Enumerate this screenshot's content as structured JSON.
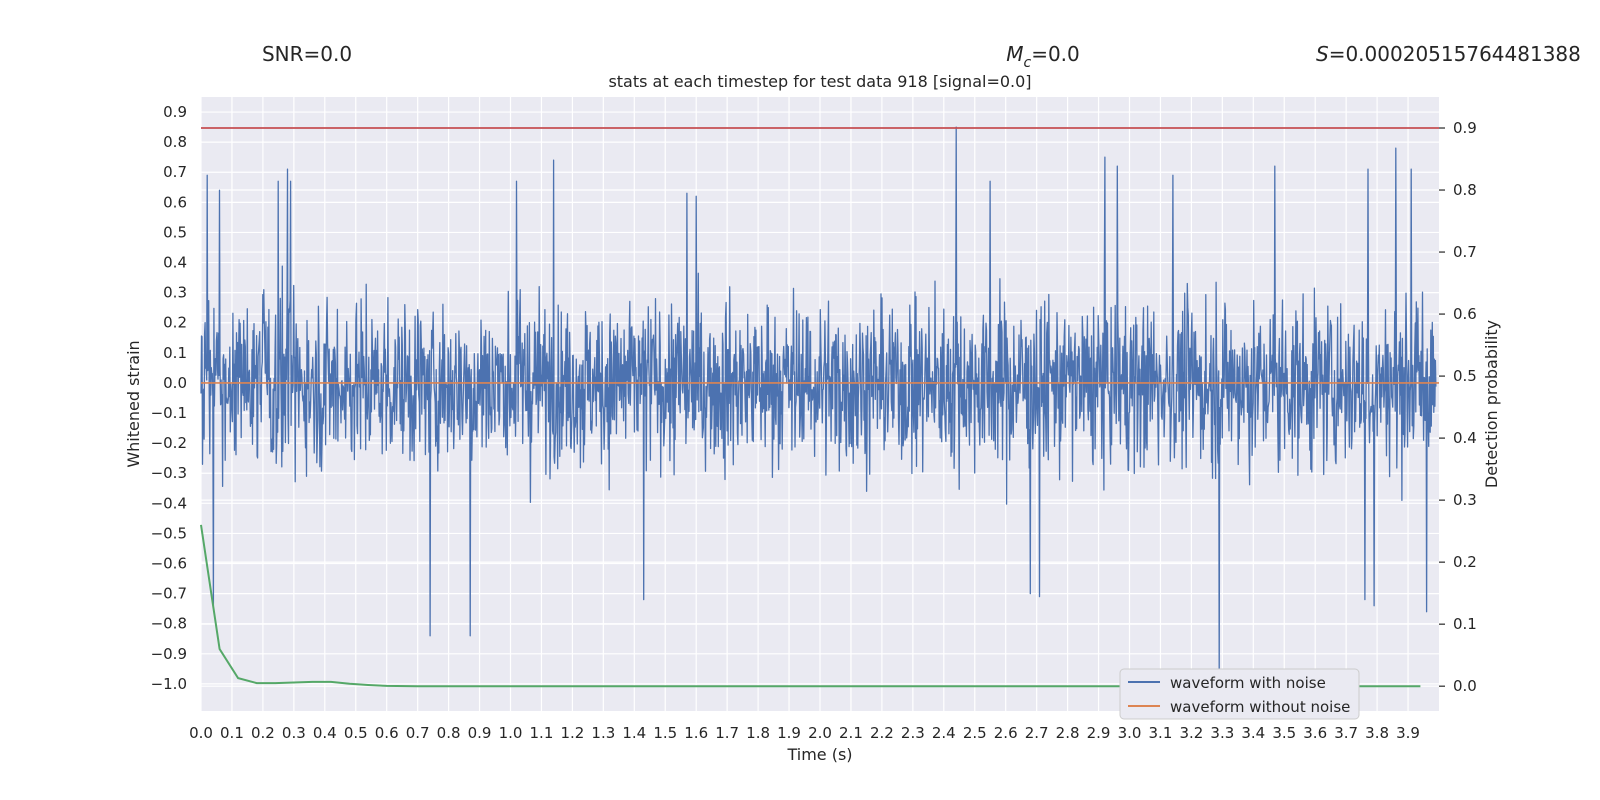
{
  "header": {
    "snr_label": "SNR=0.0",
    "mc_symbol": "M",
    "mc_sub": "c",
    "mc_value": "=0.0",
    "s_symbol": "S",
    "s_value": "=0.00020515764481388"
  },
  "chart_data": {
    "type": "line",
    "title": "stats at each timestep for test data 918 [signal=0.0]",
    "xlabel": "Time (s)",
    "ylabel_left": "Whitened strain",
    "ylabel_right": "Detection probability",
    "xlim": [
      0.0,
      4.0
    ],
    "ylim_left": [
      -1.09,
      0.95
    ],
    "ylim_right": [
      -0.04,
      0.95
    ],
    "x_ticks": [
      "0.0",
      "0.1",
      "0.2",
      "0.3",
      "0.4",
      "0.5",
      "0.6",
      "0.7",
      "0.8",
      "0.9",
      "1.0",
      "1.1",
      "1.2",
      "1.3",
      "1.4",
      "1.5",
      "1.6",
      "1.7",
      "1.8",
      "1.9",
      "2.0",
      "2.1",
      "2.2",
      "2.3",
      "2.4",
      "2.5",
      "2.6",
      "2.7",
      "2.8",
      "2.9",
      "3.0",
      "3.1",
      "3.2",
      "3.3",
      "3.4",
      "3.5",
      "3.6",
      "3.7",
      "3.8",
      "3.9"
    ],
    "y_left_ticks": [
      "0.9",
      "0.8",
      "0.7",
      "0.6",
      "0.5",
      "0.4",
      "0.3",
      "0.2",
      "0.1",
      "0.0",
      "-0.1",
      "-0.2",
      "-0.3",
      "-0.4",
      "-0.5",
      "-0.6",
      "-0.7",
      "-0.8",
      "-0.9",
      "-1.0"
    ],
    "y_right_ticks": [
      "0.9",
      "0.8",
      "0.7",
      "0.6",
      "0.5",
      "0.4",
      "0.3",
      "0.2",
      "0.1",
      "0.0"
    ],
    "threshold": 0.9,
    "noise_envelope": {
      "approx_abs_max": 0.97,
      "upper_spikes": [
        {
          "t": 0.02,
          "v": 0.69
        },
        {
          "t": 0.06,
          "v": 0.64
        },
        {
          "t": 0.25,
          "v": 0.67
        },
        {
          "t": 0.28,
          "v": 0.71
        },
        {
          "t": 0.29,
          "v": 0.67
        },
        {
          "t": 1.02,
          "v": 0.67
        },
        {
          "t": 1.14,
          "v": 0.74
        },
        {
          "t": 1.57,
          "v": 0.63
        },
        {
          "t": 1.6,
          "v": 0.62
        },
        {
          "t": 2.44,
          "v": 0.85
        },
        {
          "t": 2.55,
          "v": 0.67
        },
        {
          "t": 2.92,
          "v": 0.75
        },
        {
          "t": 2.96,
          "v": 0.72
        },
        {
          "t": 3.14,
          "v": 0.69
        },
        {
          "t": 3.47,
          "v": 0.72
        },
        {
          "t": 3.77,
          "v": 0.71
        },
        {
          "t": 3.86,
          "v": 0.78
        },
        {
          "t": 3.91,
          "v": 0.71
        }
      ],
      "lower_spikes": [
        {
          "t": 0.04,
          "v": -0.74
        },
        {
          "t": 0.74,
          "v": -0.84
        },
        {
          "t": 0.87,
          "v": -0.84
        },
        {
          "t": 1.43,
          "v": -0.72
        },
        {
          "t": 2.68,
          "v": -0.7
        },
        {
          "t": 2.71,
          "v": -0.71
        },
        {
          "t": 3.29,
          "v": -0.97
        },
        {
          "t": 3.76,
          "v": -0.72
        },
        {
          "t": 3.79,
          "v": -0.74
        },
        {
          "t": 3.96,
          "v": -0.76
        }
      ]
    },
    "series": [
      {
        "name": "waveform with noise",
        "axis": "left",
        "color": "#4c72b0",
        "kind": "noise_trace"
      },
      {
        "name": "waveform without noise",
        "axis": "left",
        "color": "#dd8452",
        "x": [
          0.0,
          4.0
        ],
        "values": [
          0.0,
          0.0
        ]
      },
      {
        "name": "",
        "axis": "right",
        "color": "#55a868",
        "x": [
          0.0,
          0.06,
          0.12,
          0.18,
          0.24,
          0.3,
          0.36,
          0.42,
          0.48,
          0.54,
          0.6,
          0.7,
          0.8,
          1.0,
          2.0,
          3.0,
          3.94
        ],
        "values": [
          0.26,
          0.06,
          0.013,
          0.005,
          0.005,
          0.006,
          0.007,
          0.007,
          0.004,
          0.002,
          0.0005,
          0.0,
          0.0,
          0.0,
          0.0,
          0.0,
          0.0
        ]
      },
      {
        "name": "",
        "axis": "right",
        "color": "#c44e52",
        "kind": "threshold",
        "x": [
          0.0,
          4.0
        ],
        "values": [
          0.9,
          0.9
        ]
      }
    ],
    "legend": {
      "position": "lower-right",
      "entries": [
        {
          "label": "waveform with noise",
          "color": "#4c72b0"
        },
        {
          "label": "waveform without noise",
          "color": "#dd8452"
        }
      ]
    }
  }
}
